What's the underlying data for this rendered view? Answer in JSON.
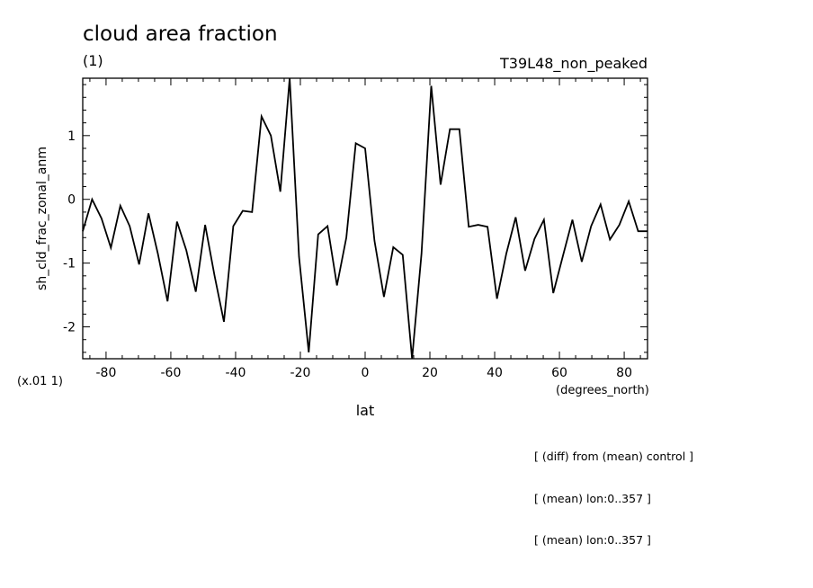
{
  "chart_data": {
    "type": "line",
    "title": "cloud area fraction",
    "subtitle_left": "(1)",
    "subtitle_right": "T39L48_non_peaked",
    "ylabel": "sh_cld_frac_zonal_anm",
    "xlabel": "lat",
    "xunits": "(degrees_north)",
    "yscale_note": "(x.01 1)",
    "xlim": [
      -87.2,
      87.2
    ],
    "ylim": [
      -2.5,
      1.9
    ],
    "xticks": [
      -80,
      -60,
      -40,
      -20,
      0,
      20,
      40,
      60,
      80
    ],
    "xtick_labels": [
      "-80",
      "-60",
      "-40",
      "-20",
      "0",
      "20",
      "40",
      "60",
      "80"
    ],
    "yticks": [
      -2,
      -1,
      0,
      1
    ],
    "ytick_labels": [
      "-2",
      "-1",
      "0",
      "1"
    ],
    "series": [
      {
        "x": [
          -87.2,
          -84.3,
          -81.4,
          -78.5,
          -75.6,
          -72.7,
          -69.8,
          -66.9,
          -64.0,
          -61.0,
          -58.1,
          -55.2,
          -52.3,
          -49.4,
          -46.5,
          -43.6,
          -40.7,
          -37.8,
          -34.9,
          -32.0,
          -29.1,
          -26.2,
          -23.3,
          -20.4,
          -17.4,
          -14.5,
          -11.6,
          -8.7,
          -5.8,
          -2.9,
          0.0,
          2.9,
          5.8,
          8.7,
          11.6,
          14.5,
          17.4,
          20.4,
          23.3,
          26.2,
          29.1,
          32.0,
          34.9,
          37.8,
          40.7,
          43.6,
          46.5,
          49.4,
          52.3,
          55.2,
          58.1,
          61.0,
          64.0,
          66.9,
          69.8,
          72.7,
          75.6,
          78.5,
          81.4,
          84.3,
          87.2
        ],
        "values": [
          -0.5,
          0.0,
          -0.3,
          -0.76,
          -0.1,
          -0.42,
          -1.02,
          -0.22,
          -0.85,
          -1.6,
          -0.35,
          -0.8,
          -1.45,
          -0.4,
          -1.2,
          -1.92,
          -0.42,
          -0.18,
          -0.2,
          1.3,
          1.0,
          0.12,
          1.9,
          -0.9,
          -2.4,
          -0.55,
          -0.42,
          -1.35,
          -0.6,
          0.88,
          0.8,
          -0.65,
          -1.53,
          -0.75,
          -0.87,
          -2.5,
          -0.85,
          1.78,
          0.23,
          1.1,
          1.1,
          -0.43,
          -0.4,
          -0.43,
          -1.56,
          -0.85,
          -0.28,
          -1.12,
          -0.62,
          -0.32,
          -1.47,
          -0.9,
          -0.32,
          -0.98,
          -0.42,
          -0.08,
          -0.63,
          -0.4,
          -0.03,
          -0.5,
          -0.5
        ]
      }
    ],
    "grid": false
  },
  "notes": [
    "[ (diff) from (mean) control ]",
    "[ (mean) lon:0..357 ]",
    "[ (mean) lon:0..357 ]"
  ]
}
